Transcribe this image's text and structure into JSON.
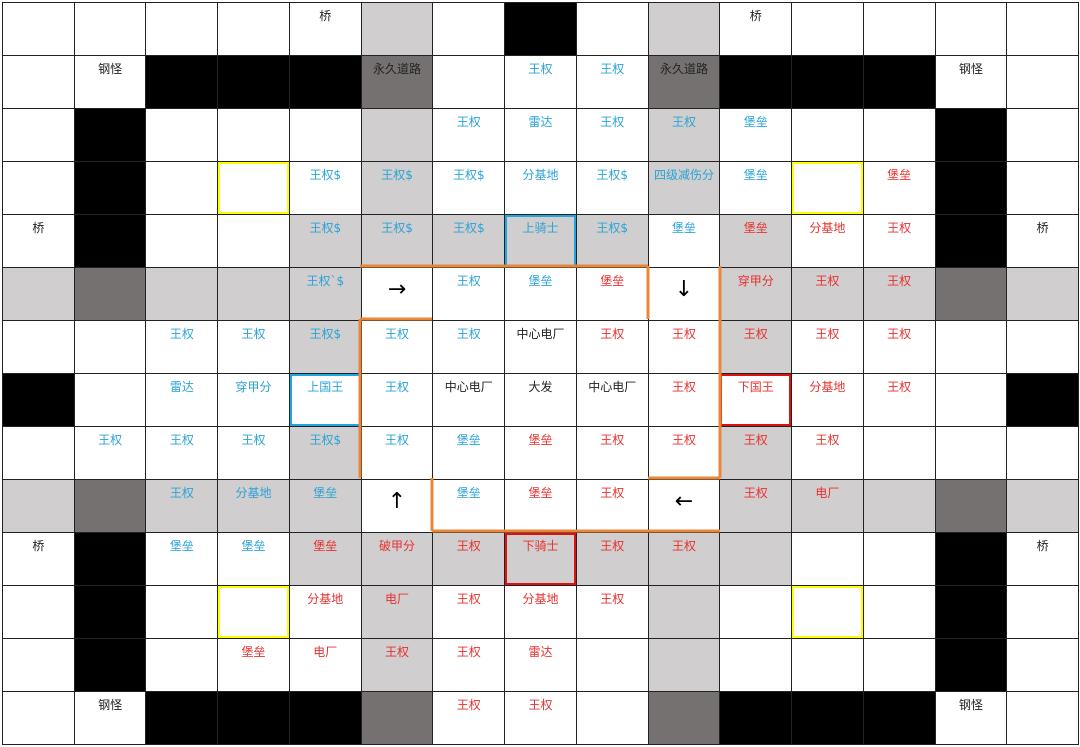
{
  "colors": {
    "blue_text": "#2aa3d8",
    "red_text": "#e8302f",
    "light_fill": "#d0cece",
    "dark_fill": "#767171",
    "black_fill": "#000000",
    "yellow_highlight": "#ffff00",
    "blue_highlight": "#1fa5e0",
    "red_highlight": "#e01010",
    "path_line": "#e8873a"
  },
  "grid": {
    "rows": [
      [
        [
          "white"
        ],
        [
          "white"
        ],
        [
          "white"
        ],
        [
          "white"
        ],
        [
          "white",
          "桥",
          "dark"
        ],
        [
          "light"
        ],
        [
          "white"
        ],
        [
          "black"
        ],
        [
          "white"
        ],
        [
          "light"
        ],
        [
          "white",
          "桥",
          "dark"
        ],
        [
          "white"
        ],
        [
          "white"
        ],
        [
          "white"
        ],
        [
          "white"
        ]
      ],
      [
        [
          "white"
        ],
        [
          "white",
          "钢怪",
          "dark"
        ],
        [
          "black"
        ],
        [
          "black"
        ],
        [
          "black"
        ],
        [
          "dark",
          "永久道路",
          "dark"
        ],
        [
          "white"
        ],
        [
          "white",
          "王权",
          "blue"
        ],
        [
          "white",
          "王权",
          "blue"
        ],
        [
          "dark",
          "永久道路",
          "dark"
        ],
        [
          "black"
        ],
        [
          "black"
        ],
        [
          "black"
        ],
        [
          "white",
          "钢怪",
          "dark"
        ],
        [
          "white"
        ]
      ],
      [
        [
          "white"
        ],
        [
          "black"
        ],
        [
          "white"
        ],
        [
          "white"
        ],
        [
          "white"
        ],
        [
          "light"
        ],
        [
          "white",
          "王权",
          "blue"
        ],
        [
          "white",
          "雷达",
          "blue"
        ],
        [
          "white",
          "王权",
          "blue"
        ],
        [
          "light",
          "王权",
          "blue"
        ],
        [
          "white",
          "堡垒",
          "blue"
        ],
        [
          "white"
        ],
        [
          "white"
        ],
        [
          "black"
        ],
        [
          "white"
        ]
      ],
      [
        [
          "white"
        ],
        [
          "black"
        ],
        [
          "white"
        ],
        [
          "white",
          "",
          "",
          "yellow"
        ],
        [
          "white",
          "王权$",
          "blue"
        ],
        [
          "light",
          "王权$",
          "blue"
        ],
        [
          "white",
          "王权$",
          "blue"
        ],
        [
          "white",
          "分基地",
          "blue"
        ],
        [
          "white",
          "王权$",
          "blue"
        ],
        [
          "light",
          "四级减伤分",
          "blue"
        ],
        [
          "white",
          "堡垒",
          "blue"
        ],
        [
          "white",
          "",
          "",
          "yellow"
        ],
        [
          "white",
          "堡垒",
          "red"
        ],
        [
          "black"
        ],
        [
          "white"
        ]
      ],
      [
        [
          "white",
          "桥",
          "dark"
        ],
        [
          "black"
        ],
        [
          "white"
        ],
        [
          "white"
        ],
        [
          "light",
          "王权$",
          "blue"
        ],
        [
          "light",
          "王权$",
          "blue"
        ],
        [
          "light",
          "王权$",
          "blue"
        ],
        [
          "light",
          "上骑士",
          "blue",
          "blue"
        ],
        [
          "light",
          "王权$",
          "blue"
        ],
        [
          "white",
          "堡垒",
          "blue"
        ],
        [
          "light",
          "堡垒",
          "red"
        ],
        [
          "white",
          "分基地",
          "red"
        ],
        [
          "white",
          "王权",
          "red"
        ],
        [
          "black"
        ],
        [
          "white",
          "桥",
          "dark"
        ]
      ],
      [
        [
          "light"
        ],
        [
          "dark"
        ],
        [
          "light"
        ],
        [
          "light"
        ],
        [
          "light",
          "王权`$",
          "blue"
        ],
        [
          "white",
          "→",
          "arrow"
        ],
        [
          "white",
          "王权",
          "blue"
        ],
        [
          "white",
          "堡垒",
          "blue"
        ],
        [
          "white",
          "堡垒",
          "red"
        ],
        [
          "white",
          "↓",
          "arrow"
        ],
        [
          "light",
          "穿甲分",
          "red"
        ],
        [
          "light",
          "王权",
          "red"
        ],
        [
          "light",
          "王权",
          "red"
        ],
        [
          "dark"
        ],
        [
          "light"
        ]
      ],
      [
        [
          "white"
        ],
        [
          "white"
        ],
        [
          "white",
          "王权",
          "blue"
        ],
        [
          "white",
          "王权",
          "blue"
        ],
        [
          "light",
          "王权$",
          "blue"
        ],
        [
          "white",
          "王权",
          "blue"
        ],
        [
          "white",
          "王权",
          "blue"
        ],
        [
          "white",
          "中心电厂",
          "dark"
        ],
        [
          "white",
          "王权",
          "red"
        ],
        [
          "white",
          "王权",
          "red"
        ],
        [
          "light",
          "王权",
          "red"
        ],
        [
          "white",
          "王权",
          "red"
        ],
        [
          "white",
          "王权",
          "red"
        ],
        [
          "white"
        ],
        [
          "white"
        ]
      ],
      [
        [
          "black"
        ],
        [
          "white"
        ],
        [
          "white",
          "雷达",
          "blue"
        ],
        [
          "white",
          "穿甲分",
          "blue"
        ],
        [
          "white",
          "上国王",
          "blue",
          "blue"
        ],
        [
          "white",
          "王权",
          "blue"
        ],
        [
          "white",
          "中心电厂",
          "dark"
        ],
        [
          "white",
          "大发",
          "dark"
        ],
        [
          "white",
          "中心电厂",
          "dark"
        ],
        [
          "white",
          "王权",
          "red"
        ],
        [
          "white",
          "下国王",
          "red",
          "red"
        ],
        [
          "white",
          "分基地",
          "red"
        ],
        [
          "white",
          "王权",
          "red"
        ],
        [
          "white"
        ],
        [
          "black"
        ]
      ],
      [
        [
          "white"
        ],
        [
          "white",
          "王权",
          "blue"
        ],
        [
          "white",
          "王权",
          "blue"
        ],
        [
          "white",
          "王权",
          "blue"
        ],
        [
          "light",
          "王权$",
          "blue"
        ],
        [
          "white",
          "王权",
          "blue"
        ],
        [
          "white",
          "堡垒",
          "blue"
        ],
        [
          "white",
          "堡垒",
          "red"
        ],
        [
          "white",
          "王权",
          "red"
        ],
        [
          "white",
          "王权",
          "red"
        ],
        [
          "light",
          "王权",
          "red"
        ],
        [
          "white",
          "王权",
          "red"
        ],
        [
          "white"
        ],
        [
          "white"
        ],
        [
          "white"
        ]
      ],
      [
        [
          "light"
        ],
        [
          "dark"
        ],
        [
          "light",
          "王权",
          "blue"
        ],
        [
          "light",
          "分基地",
          "blue"
        ],
        [
          "light",
          "堡垒",
          "blue"
        ],
        [
          "white",
          "↑",
          "arrow"
        ],
        [
          "white",
          "堡垒",
          "blue"
        ],
        [
          "white",
          "堡垒",
          "red"
        ],
        [
          "white",
          "王权",
          "red"
        ],
        [
          "white",
          "←",
          "arrow"
        ],
        [
          "light",
          "王权",
          "red"
        ],
        [
          "light",
          "电厂",
          "red"
        ],
        [
          "light"
        ],
        [
          "dark"
        ],
        [
          "light"
        ]
      ],
      [
        [
          "white",
          "桥",
          "dark"
        ],
        [
          "black"
        ],
        [
          "white",
          "堡垒",
          "blue"
        ],
        [
          "white",
          "堡垒",
          "blue"
        ],
        [
          "light",
          "堡垒",
          "red"
        ],
        [
          "light",
          "破甲分",
          "red"
        ],
        [
          "light",
          "王权",
          "red"
        ],
        [
          "light",
          "下骑士",
          "red",
          "red"
        ],
        [
          "light",
          "王权",
          "red"
        ],
        [
          "light",
          "王权",
          "red"
        ],
        [
          "light"
        ],
        [
          "white"
        ],
        [
          "white"
        ],
        [
          "black"
        ],
        [
          "white",
          "桥",
          "dark"
        ]
      ],
      [
        [
          "white"
        ],
        [
          "black"
        ],
        [
          "white"
        ],
        [
          "white",
          "",
          "",
          "yellow"
        ],
        [
          "white",
          "分基地",
          "red"
        ],
        [
          "light",
          "电厂",
          "red"
        ],
        [
          "white",
          "王权",
          "red"
        ],
        [
          "white",
          "分基地",
          "red"
        ],
        [
          "white",
          "王权",
          "red"
        ],
        [
          "light"
        ],
        [
          "white"
        ],
        [
          "white",
          "",
          "",
          "yellow"
        ],
        [
          "white"
        ],
        [
          "black"
        ],
        [
          "white"
        ]
      ],
      [
        [
          "white"
        ],
        [
          "black"
        ],
        [
          "white"
        ],
        [
          "white",
          "堡垒",
          "red"
        ],
        [
          "white",
          "电厂",
          "red"
        ],
        [
          "light",
          "王权",
          "red"
        ],
        [
          "white",
          "王权",
          "red"
        ],
        [
          "white",
          "雷达",
          "red"
        ],
        [
          "white"
        ],
        [
          "light"
        ],
        [
          "white"
        ],
        [
          "white"
        ],
        [
          "white"
        ],
        [
          "black"
        ],
        [
          "white"
        ]
      ],
      [
        [
          "white"
        ],
        [
          "white",
          "钢怪",
          "dark"
        ],
        [
          "black"
        ],
        [
          "black"
        ],
        [
          "black"
        ],
        [
          "dark"
        ],
        [
          "white",
          "王权",
          "red"
        ],
        [
          "white",
          "王权",
          "red"
        ],
        [
          "white"
        ],
        [
          "dark"
        ],
        [
          "black"
        ],
        [
          "black"
        ],
        [
          "black"
        ],
        [
          "white",
          "钢怪",
          "dark"
        ],
        [
          "white"
        ]
      ]
    ]
  }
}
